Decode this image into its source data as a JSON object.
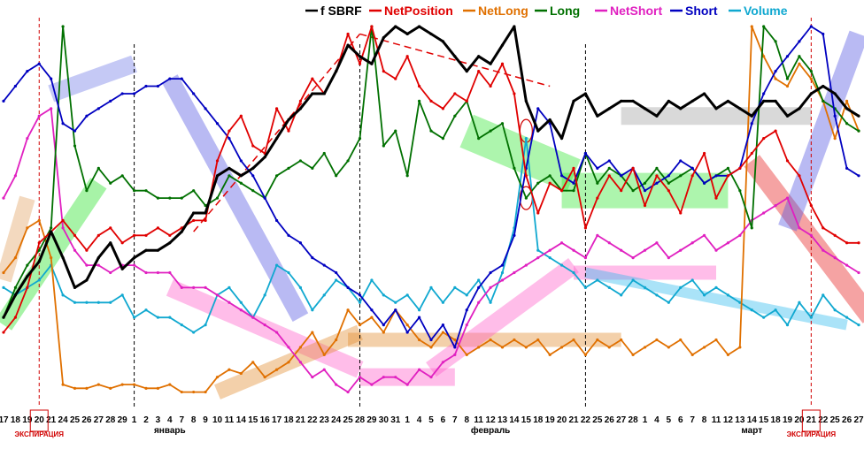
{
  "chart_data": {
    "type": "line",
    "legend": [
      {
        "key": "sbrf",
        "label": "f SBRF",
        "color": "#000000"
      },
      {
        "key": "net",
        "label": "NetPosition",
        "color": "#e00000"
      },
      {
        "key": "netlong",
        "label": "NetLong",
        "color": "#e07000"
      },
      {
        "key": "long",
        "label": "Long",
        "color": "#007000"
      },
      {
        "key": "netshort",
        "label": "NetShort",
        "color": "#e020c0"
      },
      {
        "key": "short",
        "label": "Short",
        "color": "#0000c0"
      },
      {
        "key": "volume",
        "label": "Volume",
        "color": "#10a8d0"
      }
    ],
    "x_labels": [
      "17",
      "18",
      "19",
      "20",
      "21",
      "24",
      "25",
      "26",
      "27",
      "28",
      "29",
      "1",
      "2",
      "3",
      "4",
      "7",
      "8",
      "9",
      "10",
      "11",
      "14",
      "15",
      "16",
      "17",
      "18",
      "21",
      "22",
      "23",
      "24",
      "25",
      "28",
      "29",
      "30",
      "31",
      "1",
      "4",
      "5",
      "6",
      "7",
      "8",
      "11",
      "12",
      "13",
      "14",
      "15",
      "18",
      "19",
      "20",
      "21",
      "22",
      "25",
      "26",
      "27",
      "28",
      "1",
      "4",
      "5",
      "6",
      "7",
      "8",
      "11",
      "12",
      "13",
      "14",
      "15",
      "18",
      "19",
      "20",
      "21",
      "22",
      "25",
      "26",
      "27"
    ],
    "month_labels": [
      {
        "label": "январь",
        "at": 14
      },
      {
        "label": "февраль",
        "at": 41
      },
      {
        "label": "март",
        "at": 63
      }
    ],
    "expiration_label": "ЭКСПИРАЦИЯ",
    "expirations": [
      3,
      68
    ],
    "month_separators": [
      11,
      30,
      49
    ],
    "ylim": [
      0,
      100
    ],
    "series": {
      "sbrf": [
        22,
        28,
        33,
        37,
        45,
        38,
        30,
        32,
        38,
        42,
        35,
        38,
        40,
        40,
        42,
        45,
        50,
        50,
        60,
        62,
        60,
        62,
        65,
        70,
        75,
        78,
        82,
        82,
        88,
        95,
        92,
        90,
        97,
        100,
        98,
        100,
        98,
        96,
        92,
        88,
        92,
        90,
        95,
        100,
        80,
        72,
        75,
        70,
        80,
        82,
        76,
        78,
        80,
        80,
        78,
        76,
        80,
        78,
        80,
        82,
        78,
        80,
        78,
        76,
        80,
        80,
        76,
        78,
        82,
        84,
        82,
        78,
        76
      ],
      "net": [
        18,
        22,
        30,
        42,
        45,
        48,
        44,
        40,
        44,
        46,
        42,
        44,
        44,
        46,
        44,
        46,
        48,
        48,
        64,
        72,
        76,
        68,
        66,
        78,
        72,
        80,
        86,
        82,
        88,
        98,
        90,
        100,
        88,
        86,
        92,
        84,
        80,
        78,
        82,
        80,
        88,
        84,
        90,
        82,
        60,
        50,
        58,
        56,
        62,
        46,
        54,
        60,
        56,
        62,
        52,
        60,
        56,
        50,
        60,
        66,
        54,
        60,
        62,
        66,
        70,
        72,
        64,
        60,
        52,
        46,
        44,
        42,
        42
      ],
      "netlong": [
        34,
        38,
        46,
        48,
        38,
        4,
        3,
        3,
        4,
        3,
        4,
        4,
        3,
        3,
        4,
        2,
        2,
        2,
        6,
        8,
        7,
        10,
        6,
        8,
        10,
        14,
        18,
        12,
        16,
        24,
        20,
        22,
        18,
        24,
        20,
        16,
        14,
        18,
        16,
        12,
        14,
        16,
        14,
        16,
        14,
        16,
        12,
        14,
        16,
        12,
        16,
        14,
        16,
        12,
        14,
        16,
        14,
        16,
        12,
        14,
        16,
        12,
        14,
        100,
        92,
        86,
        84,
        90,
        86,
        80,
        70,
        80,
        72
      ],
      "long": [
        22,
        30,
        36,
        40,
        46,
        100,
        68,
        56,
        62,
        58,
        60,
        56,
        56,
        54,
        54,
        54,
        56,
        52,
        54,
        60,
        58,
        56,
        54,
        60,
        62,
        64,
        62,
        66,
        60,
        64,
        70,
        100,
        68,
        72,
        60,
        80,
        72,
        70,
        76,
        80,
        70,
        72,
        74,
        62,
        54,
        58,
        60,
        56,
        56,
        66,
        58,
        62,
        60,
        56,
        58,
        62,
        58,
        60,
        62,
        58,
        60,
        62,
        56,
        46,
        100,
        96,
        86,
        92,
        88,
        80,
        78,
        74,
        72
      ],
      "netshort": [
        54,
        60,
        70,
        76,
        78,
        46,
        40,
        36,
        36,
        34,
        36,
        36,
        34,
        34,
        34,
        30,
        30,
        30,
        28,
        26,
        24,
        22,
        20,
        18,
        14,
        10,
        6,
        8,
        4,
        2,
        6,
        4,
        6,
        6,
        4,
        8,
        6,
        10,
        12,
        20,
        26,
        30,
        32,
        34,
        36,
        38,
        40,
        42,
        40,
        38,
        44,
        42,
        40,
        38,
        40,
        42,
        38,
        40,
        42,
        44,
        40,
        42,
        44,
        48,
        50,
        52,
        54,
        46,
        44,
        40,
        38,
        36,
        34
      ],
      "short": [
        80,
        84,
        88,
        90,
        86,
        74,
        72,
        76,
        78,
        80,
        82,
        82,
        84,
        84,
        86,
        86,
        82,
        78,
        74,
        70,
        64,
        60,
        54,
        48,
        44,
        42,
        38,
        36,
        34,
        30,
        28,
        24,
        20,
        24,
        18,
        22,
        16,
        20,
        14,
        24,
        30,
        34,
        36,
        44,
        62,
        78,
        74,
        60,
        58,
        66,
        62,
        64,
        60,
        62,
        56,
        58,
        60,
        64,
        62,
        58,
        60,
        60,
        62,
        74,
        82,
        88,
        92,
        96,
        100,
        98,
        76,
        62,
        60
      ],
      "volume": [
        30,
        28,
        30,
        32,
        36,
        28,
        26,
        26,
        26,
        26,
        28,
        22,
        24,
        22,
        22,
        20,
        18,
        20,
        28,
        30,
        26,
        22,
        28,
        36,
        34,
        30,
        24,
        28,
        32,
        30,
        26,
        32,
        28,
        26,
        28,
        24,
        30,
        26,
        30,
        28,
        32,
        26,
        34,
        46,
        70,
        40,
        38,
        36,
        34,
        30,
        32,
        30,
        28,
        32,
        30,
        28,
        26,
        30,
        32,
        28,
        30,
        28,
        26,
        24,
        22,
        24,
        20,
        26,
        22,
        28,
        24,
        22,
        20
      ]
    }
  }
}
